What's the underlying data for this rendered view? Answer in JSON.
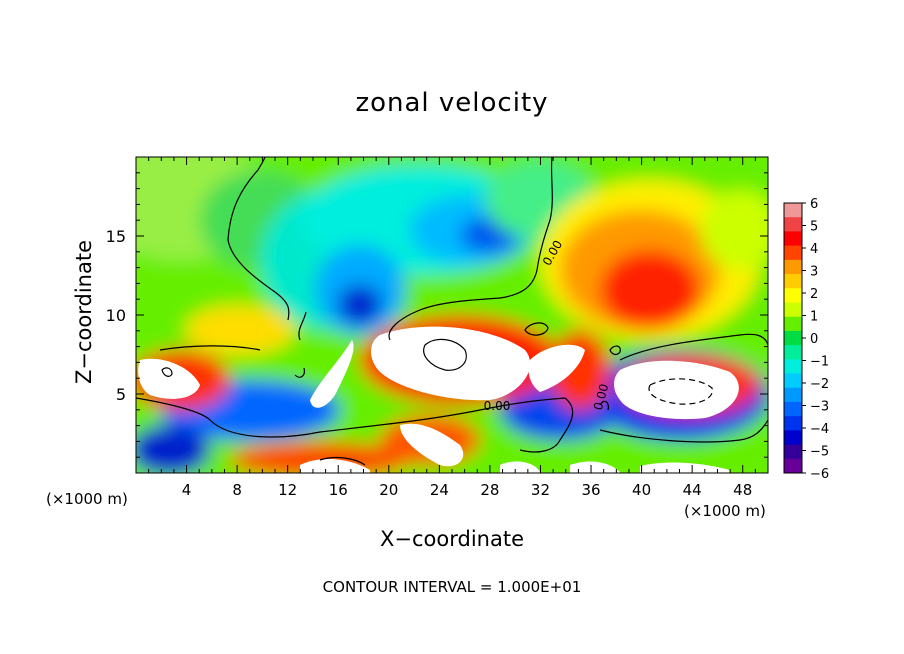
{
  "chart_data": {
    "type": "heatmap",
    "title": "zonal velocity",
    "xlabel": "X−coordinate",
    "ylabel": "Z−coordinate",
    "x_unit_left": "(×1000 m)",
    "x_unit_right": "(×1000 m)",
    "footer": "CONTOUR INTERVAL = 1.000E+01",
    "xlim": [
      0,
      50
    ],
    "ylim": [
      0,
      20
    ],
    "x_ticks": [
      4,
      8,
      12,
      16,
      20,
      24,
      28,
      32,
      36,
      40,
      44,
      48
    ],
    "y_ticks": [
      5,
      10,
      15
    ],
    "colorbar": {
      "min": -6,
      "max": 6,
      "ticks": [
        "6",
        "5",
        "4",
        "3",
        "2",
        "1",
        "0",
        "−1",
        "−2",
        "−3",
        "−4",
        "−5",
        "−6"
      ],
      "colors": [
        "#f09898",
        "#f04444",
        "#ff0000",
        "#ff4400",
        "#ff9900",
        "#ffcc00",
        "#ffff00",
        "#ccff00",
        "#66ee00",
        "#00dd44",
        "#00ee99",
        "#00eedd",
        "#00ccff",
        "#0099ff",
        "#0066ff",
        "#0033ee",
        "#0000cc",
        "#330099",
        "#660099"
      ]
    },
    "contour_labels": [
      "0.00",
      "0.00",
      "0.00"
    ]
  }
}
